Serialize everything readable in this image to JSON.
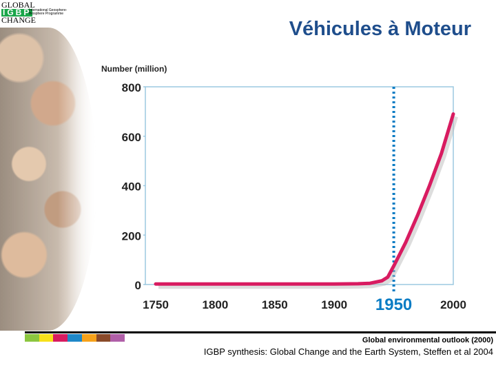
{
  "logo": {
    "line1": "GLOBAL",
    "line2": "IGBP",
    "line3": "CHANGE",
    "subtitle": "International Geosphere-Biosphere Programme"
  },
  "title": "Véhicules à Moteur",
  "chart_data": {
    "type": "line",
    "title": "",
    "ylabel": "Number (million)",
    "xlabel": "",
    "xlim": [
      1750,
      2000
    ],
    "ylim": [
      0,
      800
    ],
    "xticks": [
      1750,
      1800,
      1850,
      1900,
      1950,
      2000
    ],
    "yticks": [
      0,
      200,
      400,
      600,
      800
    ],
    "highlight_year": 1950,
    "grid": false,
    "series": [
      {
        "color": "#d81b60",
        "x": [
          1750,
          1800,
          1850,
          1900,
          1920,
          1930,
          1940,
          1945,
          1950,
          1960,
          1970,
          1980,
          1990,
          2000
        ],
        "y": [
          2,
          2,
          2,
          2,
          3,
          5,
          15,
          30,
          75,
          170,
          280,
          400,
          530,
          690
        ]
      }
    ],
    "colors": {
      "highlight": "#0a7cc4",
      "frame": "#9cc8e0"
    }
  },
  "sources": {
    "line1": "Global environmental outlook (2000)",
    "line2": "IGBP synthesis: Global Change and the Earth System, Steffen et al 2004"
  },
  "strip_colors": [
    "#8cc63f",
    "#f7e01a",
    "#d81b60",
    "#1e88c8",
    "#f7a21a",
    "#8a4a2a",
    "#b05fa8"
  ]
}
